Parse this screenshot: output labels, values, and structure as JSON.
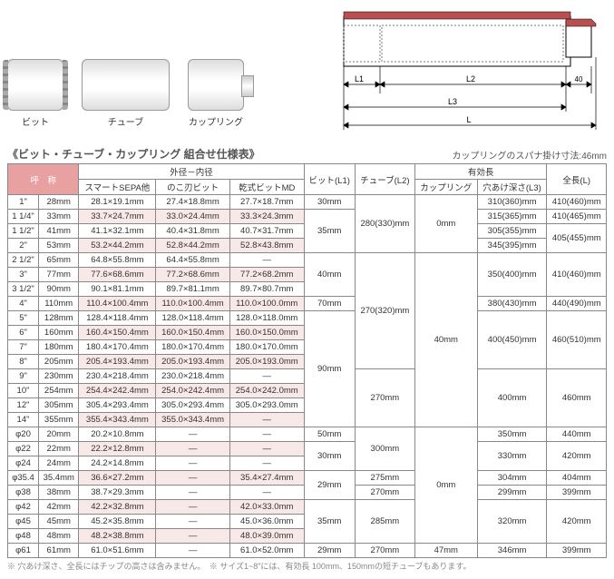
{
  "parts": {
    "bit": "ビット",
    "tube": "チューブ",
    "coupling": "カップリング"
  },
  "diagram_labels": {
    "L1": "L1",
    "L2": "L2",
    "d40": "40",
    "L3": "L3",
    "L": "L"
  },
  "table_title": "《ビット・チューブ・カップリング 組合せ仕様表》",
  "note_right": "カップリングのスパナ掛け寸法:46mm",
  "headers": {
    "name": "呼　称",
    "outer_inner": "外径－内径",
    "smart": "スマートSEPA他",
    "noko": "のこ刃ビット",
    "dry": "乾式ビットMD",
    "bit_l1": "ビット(L1)",
    "tube_l2": "チューブ(L2)",
    "effective": "有効長",
    "coupling_h": "カップリング",
    "depth_l3": "穴あけ深さ(L3)",
    "total_l": "全長(L)"
  },
  "rows": [
    {
      "label": "1\"",
      "size": "28mm",
      "smart": "28.1×19.1mm",
      "noko": "27.4×18.8mm",
      "dry": "27.7×18.7mm"
    },
    {
      "label": "1 1/4\"",
      "size": "33mm",
      "smart": "33.7×24.7mm",
      "noko": "33.0×24.4mm",
      "dry": "33.3×24.3mm"
    },
    {
      "label": "1 1/2\"",
      "size": "41mm",
      "smart": "41.1×32.1mm",
      "noko": "40.4×31.8mm",
      "dry": "40.7×31.7mm"
    },
    {
      "label": "2\"",
      "size": "53mm",
      "smart": "53.2×44.2mm",
      "noko": "52.8×44.2mm",
      "dry": "52.8×43.8mm"
    },
    {
      "label": "2 1/2\"",
      "size": "65mm",
      "smart": "64.8×55.8mm",
      "noko": "64.4×55.8mm",
      "dry": "—"
    },
    {
      "label": "3\"",
      "size": "77mm",
      "smart": "77.6×68.6mm",
      "noko": "77.2×68.6mm",
      "dry": "77.2×68.2mm"
    },
    {
      "label": "3 1/2\"",
      "size": "90mm",
      "smart": "90.1×81.1mm",
      "noko": "89.7×81.1mm",
      "dry": "89.7×80.7mm"
    },
    {
      "label": "4\"",
      "size": "110mm",
      "smart": "110.4×100.4mm",
      "noko": "110.0×100.4mm",
      "dry": "110.0×100.0mm"
    },
    {
      "label": "5\"",
      "size": "128mm",
      "smart": "128.4×118.4mm",
      "noko": "128.0×118.4mm",
      "dry": "128.0×118.0mm"
    },
    {
      "label": "6\"",
      "size": "160mm",
      "smart": "160.4×150.4mm",
      "noko": "160.0×150.4mm",
      "dry": "160.0×150.0mm"
    },
    {
      "label": "7\"",
      "size": "180mm",
      "smart": "180.4×170.4mm",
      "noko": "180.0×170.4mm",
      "dry": "180.0×170.0mm"
    },
    {
      "label": "8\"",
      "size": "205mm",
      "smart": "205.4×193.4mm",
      "noko": "205.0×193.4mm",
      "dry": "205.0×193.0mm"
    },
    {
      "label": "9\"",
      "size": "230mm",
      "smart": "230.4×218.4mm",
      "noko": "230.0×218.4mm",
      "dry": "—"
    },
    {
      "label": "10\"",
      "size": "254mm",
      "smart": "254.4×242.4mm",
      "noko": "254.0×242.4mm",
      "dry": "254.0×242.0mm"
    },
    {
      "label": "12\"",
      "size": "305mm",
      "smart": "305.4×293.4mm",
      "noko": "305.0×293.4mm",
      "dry": "305.0×293.0mm"
    },
    {
      "label": "14\"",
      "size": "355mm",
      "smart": "355.4×343.4mm",
      "noko": "355.0×343.4mm",
      "dry": "—"
    },
    {
      "label": "φ20",
      "size": "20mm",
      "smart": "20.2×10.8mm",
      "noko": "—",
      "dry": "—"
    },
    {
      "label": "φ22",
      "size": "22mm",
      "smart": "22.2×12.8mm",
      "noko": "—",
      "dry": "—"
    },
    {
      "label": "φ24",
      "size": "24mm",
      "smart": "24.2×14.8mm",
      "noko": "—",
      "dry": "—"
    },
    {
      "label": "φ35.4",
      "size": "35.4mm",
      "smart": "36.6×27.2mm",
      "noko": "—",
      "dry": "35.4×27.4mm"
    },
    {
      "label": "φ38",
      "size": "38mm",
      "smart": "38.7×29.3mm",
      "noko": "—",
      "dry": "—"
    },
    {
      "label": "φ42",
      "size": "42mm",
      "smart": "42.2×32.8mm",
      "noko": "—",
      "dry": "42.0×33.0mm"
    },
    {
      "label": "φ45",
      "size": "45mm",
      "smart": "45.2×35.8mm",
      "noko": "—",
      "dry": "45.0×36.0mm"
    },
    {
      "label": "φ48",
      "size": "48mm",
      "smart": "48.2×38.8mm",
      "noko": "—",
      "dry": "48.0×39.0mm"
    },
    {
      "label": "φ61",
      "size": "61mm",
      "smart": "61.0×51.6mm",
      "noko": "—",
      "dry": "61.0×52.0mm"
    }
  ],
  "merged": {
    "bit_l1": [
      "30mm",
      "35mm",
      "40mm",
      "70mm",
      "90mm",
      "50mm",
      "30mm",
      "29mm",
      "35mm",
      "29mm"
    ],
    "tube_l2": [
      "280(330)mm",
      "270(320)mm",
      "270mm",
      "300mm",
      "275mm",
      "270mm",
      "285mm",
      "270mm"
    ],
    "coupling": [
      "0mm",
      "40mm",
      "0mm",
      "47mm"
    ],
    "depth_l3": [
      "310(360)mm",
      "315(365)mm",
      "305(355)mm",
      "345(395)mm",
      "350(400)mm",
      "380(430)mm",
      "400(450)mm",
      "400mm",
      "350mm",
      "330mm",
      "304mm",
      "299mm",
      "320mm",
      "346mm"
    ],
    "total_l": [
      "410(460)mm",
      "410(465)mm",
      "405(455)mm",
      "410(460)mm",
      "440(490)mm",
      "460(510)mm",
      "460mm",
      "440mm",
      "420mm",
      "404mm",
      "399mm",
      "420mm",
      "399mm"
    ]
  },
  "footnote": "※ 穴あけ深さ、全長にはチップの高さは含みません。　※ サイズ1~8\"には、有効長 100mm、150mmの短チューブもあります。",
  "colors": {
    "header_bg": "#e8a0a0",
    "stripe_bg": "#f8e8e8",
    "border": "#888888"
  }
}
